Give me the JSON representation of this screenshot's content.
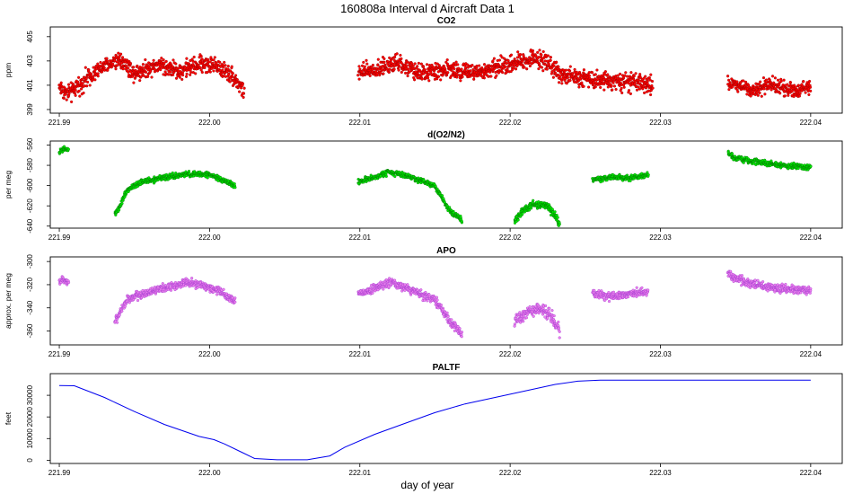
{
  "figure": {
    "title": "160808a   Interval d Aircraft Data 1",
    "xlabel": "day of year",
    "x_ticks": [
      221.99,
      222.0,
      222.01,
      222.02,
      222.03,
      222.04
    ],
    "x_tick_labels": [
      "221.99",
      "222.00",
      "222.01",
      "222.02",
      "222.03",
      "222.04"
    ],
    "xlim": [
      221.9894,
      222.0421
    ]
  },
  "chart_data": [
    {
      "type": "scatter",
      "title": "CO2",
      "ylabel": "ppm",
      "ylim": [
        398.7,
        405.8
      ],
      "y_ticks": [
        399,
        401,
        403,
        405
      ],
      "y_tick_labels": [
        "399",
        "401",
        "403",
        "405"
      ],
      "color": "#ff0000",
      "outline": "#8b0000",
      "series": [
        {
          "x": [
            221.99,
            221.9905,
            221.991,
            221.992,
            221.993,
            221.994,
            221.995,
            221.9965,
            221.998,
            221.9995,
            222.0005,
            222.0015,
            222.0023
          ],
          "y": [
            400.9,
            400.3,
            400.6,
            401.8,
            402.5,
            403.2,
            402.0,
            402.7,
            402.2,
            402.8,
            402.6,
            401.8,
            400.5
          ],
          "noise": 0.8
        },
        {
          "x": [
            222.0099,
            222.011,
            222.0125,
            222.014,
            222.016,
            222.018,
            222.02,
            222.0215,
            222.0225,
            222.0232,
            222.024,
            222.026,
            222.028,
            222.0295
          ],
          "y": [
            402.0,
            402.3,
            402.8,
            402.0,
            402.3,
            402.0,
            402.8,
            403.2,
            403.0,
            402.0,
            401.7,
            401.5,
            401.2,
            401.0
          ],
          "noise": 0.8
        },
        {
          "x": [
            222.0345,
            222.036,
            222.0375,
            222.039,
            222.04
          ],
          "y": [
            401.2,
            400.7,
            401.0,
            400.6,
            400.9
          ],
          "noise": 0.7
        }
      ]
    },
    {
      "type": "scatter",
      "title": "d(O2/N2)",
      "ylabel": "per meg",
      "ylim": [
        -642,
        -556
      ],
      "y_ticks": [
        -640,
        -620,
        -600,
        -580,
        -560
      ],
      "y_tick_labels": [
        "-640",
        "-620",
        "-600",
        "-580",
        "-560"
      ],
      "color": "#00ee00",
      "outline": "#006400",
      "series": [
        {
          "x": [
            221.99,
            221.9903,
            221.9906
          ],
          "y": [
            -567,
            -564,
            -565
          ],
          "noise": 3
        },
        {
          "x": [
            221.9937,
            221.994,
            221.9945,
            221.9955,
            221.997,
            221.9985,
            222.0,
            222.001,
            222.0017
          ],
          "y": [
            -628,
            -622,
            -605,
            -596,
            -592,
            -589,
            -589,
            -595,
            -601
          ],
          "noise": 3
        },
        {
          "x": [
            222.0099,
            222.011,
            222.012,
            222.0135,
            222.015,
            222.016,
            222.0168
          ],
          "y": [
            -596,
            -592,
            -586,
            -592,
            -600,
            -625,
            -634
          ],
          "noise": 3
        },
        {
          "x": [
            222.0203,
            222.0208,
            222.0215,
            222.0225,
            222.023,
            222.0233
          ],
          "y": [
            -635,
            -625,
            -618,
            -620,
            -630,
            -638
          ],
          "noise": 4
        },
        {
          "x": [
            222.0255,
            222.0265,
            222.028,
            222.0292
          ],
          "y": [
            -595,
            -592,
            -592,
            -590
          ],
          "noise": 3
        },
        {
          "x": [
            222.0345,
            222.035,
            222.0365,
            222.038,
            222.04
          ],
          "y": [
            -568,
            -573,
            -577,
            -580,
            -582
          ],
          "noise": 3
        }
      ]
    },
    {
      "type": "scatter",
      "title": "APO",
      "ylabel": "approx. per meg",
      "ylim": [
        -372,
        -296
      ],
      "y_ticks": [
        -360,
        -340,
        -320,
        -300
      ],
      "y_tick_labels": [
        "-360",
        "-340",
        "-320",
        "-300"
      ],
      "color": "#ee82ee",
      "outline": "#9932cc",
      "series": [
        {
          "x": [
            221.99,
            221.9903,
            221.9906
          ],
          "y": [
            -318,
            -315,
            -318
          ],
          "noise": 3
        },
        {
          "x": [
            221.9937,
            221.994,
            221.9945,
            221.9955,
            221.997,
            221.9985,
            222.0,
            222.001,
            222.0017
          ],
          "y": [
            -352,
            -345,
            -333,
            -328,
            -323,
            -318,
            -322,
            -328,
            -335
          ],
          "noise": 4
        },
        {
          "x": [
            222.0099,
            222.011,
            222.012,
            222.0135,
            222.015,
            222.016,
            222.0168
          ],
          "y": [
            -328,
            -323,
            -318,
            -325,
            -333,
            -352,
            -362
          ],
          "noise": 4
        },
        {
          "x": [
            222.0203,
            222.021,
            222.022,
            222.0228,
            222.0233
          ],
          "y": [
            -352,
            -345,
            -340,
            -348,
            -360
          ],
          "noise": 6
        },
        {
          "x": [
            222.0255,
            222.0265,
            222.028,
            222.0292
          ],
          "y": [
            -328,
            -330,
            -328,
            -326
          ],
          "noise": 4
        },
        {
          "x": [
            222.0345,
            222.035,
            222.0365,
            222.038,
            222.04
          ],
          "y": [
            -310,
            -315,
            -320,
            -324,
            -325
          ],
          "noise": 4
        }
      ]
    },
    {
      "type": "line",
      "title": "PALTF",
      "ylabel": "feet",
      "ylim": [
        -1500,
        40000
      ],
      "y_ticks": [
        0,
        10000,
        20000,
        30000
      ],
      "y_tick_labels": [
        "0",
        "10000",
        "20000",
        "30000"
      ],
      "color": "#0000ee",
      "series": [
        {
          "x": [
            221.99,
            221.991,
            221.993,
            221.995,
            221.997,
            221.9993,
            222.0003,
            222.001,
            222.0022,
            222.003,
            222.0045,
            222.0065,
            222.008,
            222.009,
            222.011,
            222.013,
            222.015,
            222.017,
            222.019,
            222.021,
            222.023,
            222.0245,
            222.026,
            222.03,
            222.035,
            222.04
          ],
          "y": [
            34500,
            34400,
            29000,
            22500,
            16500,
            11000,
            9500,
            7500,
            3500,
            800,
            200,
            200,
            2000,
            6000,
            12000,
            17000,
            22000,
            26000,
            29000,
            32000,
            35000,
            36500,
            37000,
            37000,
            37000,
            37000
          ]
        }
      ]
    }
  ]
}
